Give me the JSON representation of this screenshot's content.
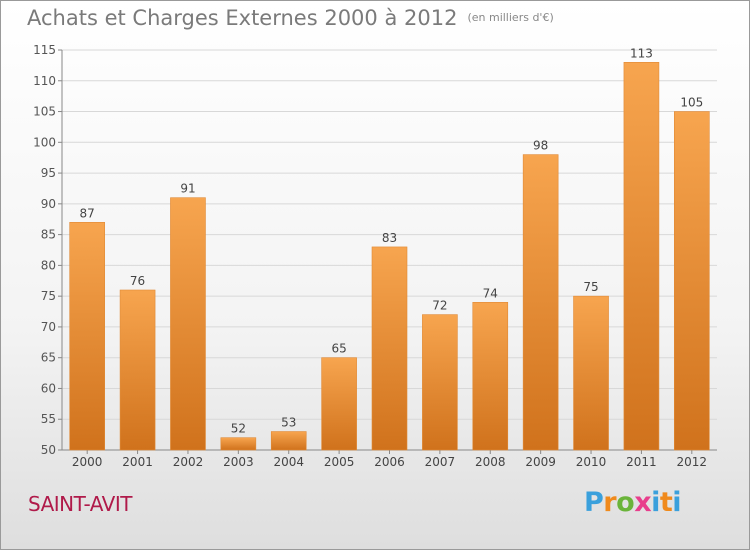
{
  "title": "Achats et Charges Externes 2000 à 2012",
  "unit": "(en milliers d'€)",
  "place": "SAINT-AVIT",
  "logo": "Proxiti",
  "colors": {
    "bar_top": "#f7a54f",
    "bar_bottom": "#d0721c",
    "grid": "#d8d8d8",
    "place": "#b01a4a"
  },
  "chart_data": {
    "type": "bar",
    "title": "Achats et Charges Externes 2000 à 2012",
    "subtitle": "(en milliers d'€)",
    "categories": [
      "2000",
      "2001",
      "2002",
      "2003",
      "2004",
      "2005",
      "2006",
      "2007",
      "2008",
      "2009",
      "2010",
      "2011",
      "2012"
    ],
    "values": [
      87,
      76,
      91,
      52,
      53,
      65,
      83,
      72,
      74,
      98,
      75,
      113,
      105
    ],
    "ylim": [
      50,
      115
    ],
    "yticks": [
      50,
      55,
      60,
      65,
      70,
      75,
      80,
      85,
      90,
      95,
      100,
      105,
      110,
      115
    ],
    "grid": true,
    "data_labels": true
  }
}
